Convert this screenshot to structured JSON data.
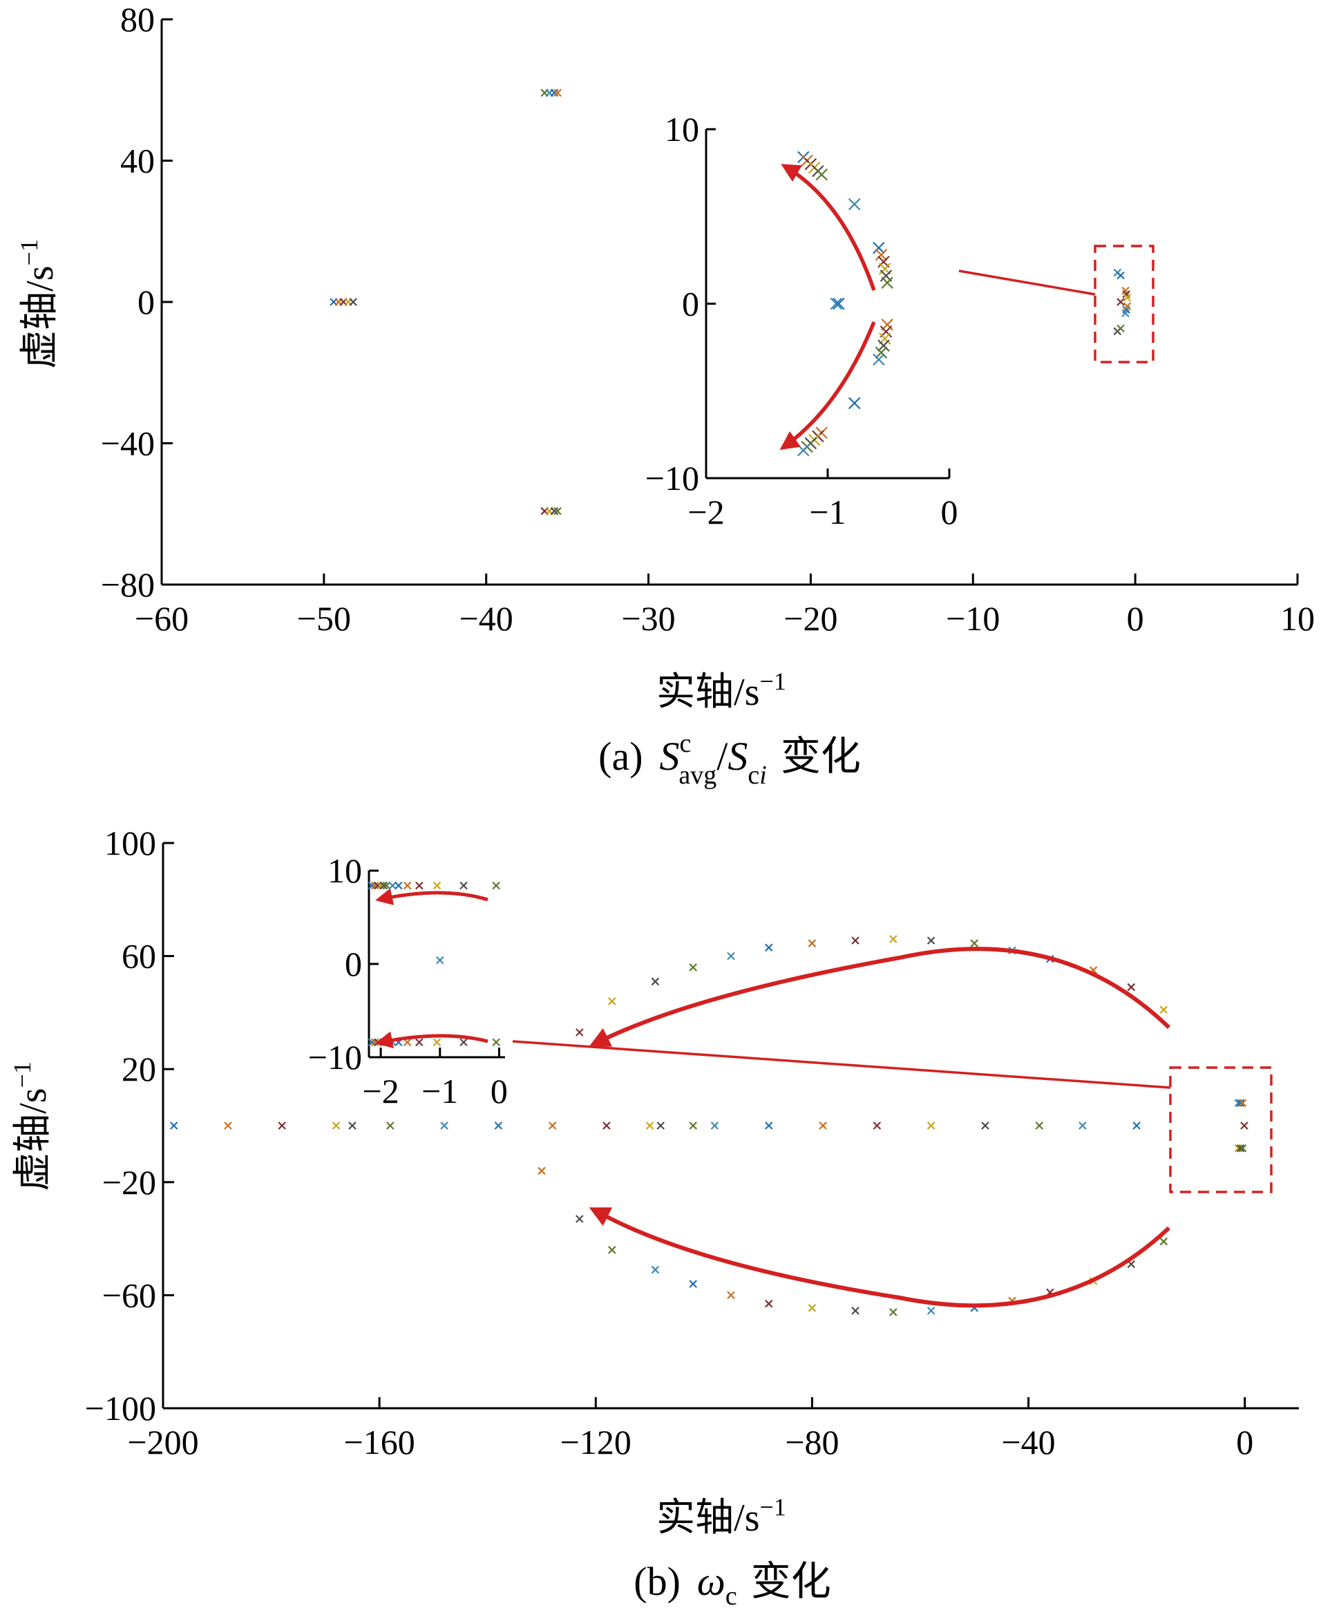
{
  "colors": {
    "axis": "#000000",
    "arrow": "#d42020",
    "zoom_box": "#d42020",
    "markers": [
      "#1f6fb5",
      "#c8701e",
      "#7a2f2f",
      "#c8a51e",
      "#4a4a4a",
      "#5a7a2a",
      "#3a8ab5"
    ]
  },
  "chart_data": [
    {
      "id": "a",
      "type": "scatter",
      "marker": "x",
      "caption": {
        "prefix": "(a)",
        "S": "S",
        "sup_c": "c",
        "sub_avg": "avg",
        "slash": "/",
        "S2": "S",
        "sub_ci": "c",
        "sub_i": "i",
        "suffix": "变化"
      },
      "xlabel": {
        "main": "实轴",
        "unit": "/s",
        "exp": "−1"
      },
      "ylabel": {
        "main": "虚轴",
        "unit": "/s",
        "exp": "−1"
      },
      "xlim": [
        -60,
        10
      ],
      "ylim": [
        -80,
        80
      ],
      "xticks": [
        -60,
        -50,
        -40,
        -30,
        -20,
        -10,
        0,
        10
      ],
      "xtick_labels": [
        "−60",
        "−50",
        "−40",
        "−30",
        "−20",
        "−10",
        "0",
        "10"
      ],
      "yticks": [
        -80,
        -40,
        0,
        40,
        80
      ],
      "ytick_labels": [
        "−80",
        "−40",
        "0",
        "40",
        "80"
      ],
      "points": [
        [
          -49.4,
          0
        ],
        [
          -49.1,
          0
        ],
        [
          -48.8,
          0
        ],
        [
          -48.5,
          0
        ],
        [
          -48.2,
          0
        ],
        [
          -36.4,
          59.2
        ],
        [
          -36.1,
          59.2
        ],
        [
          -35.8,
          59.2
        ],
        [
          -35.6,
          59.2
        ],
        [
          -36.4,
          -59.2
        ],
        [
          -36.1,
          -59.2
        ],
        [
          -35.8,
          -59.2
        ],
        [
          -35.6,
          -59.2
        ],
        [
          -1.1,
          8.3
        ],
        [
          -0.9,
          7.5
        ],
        [
          -0.6,
          3.2
        ],
        [
          -0.55,
          2.2
        ],
        [
          -0.5,
          1.2
        ],
        [
          -1.1,
          -8.3
        ],
        [
          -0.9,
          -7.5
        ],
        [
          -0.6,
          -3.2
        ],
        [
          -0.55,
          -2.2
        ],
        [
          -0.5,
          -1.2
        ],
        [
          -0.9,
          0
        ]
      ],
      "inset": {
        "xlim": [
          -2,
          0
        ],
        "ylim": [
          -10,
          10
        ],
        "xticks": [
          -2,
          -1,
          0
        ],
        "xtick_labels": [
          "−2",
          "−1",
          "0"
        ],
        "yticks": [
          -10,
          0,
          10
        ],
        "ytick_labels": [
          "−10",
          "0",
          "10"
        ],
        "points": [
          [
            -1.2,
            8.4
          ],
          [
            -1.17,
            8.2
          ],
          [
            -1.14,
            8.0
          ],
          [
            -1.11,
            7.8
          ],
          [
            -1.08,
            7.6
          ],
          [
            -1.05,
            7.4
          ],
          [
            -0.78,
            5.7
          ],
          [
            -0.58,
            3.2
          ],
          [
            -0.56,
            2.8
          ],
          [
            -0.54,
            2.4
          ],
          [
            -0.53,
            2.0
          ],
          [
            -0.52,
            1.6
          ],
          [
            -0.51,
            1.2
          ],
          [
            -0.93,
            0.0
          ],
          [
            -0.91,
            0.0
          ],
          [
            -0.51,
            -1.2
          ],
          [
            -0.52,
            -1.6
          ],
          [
            -0.53,
            -2.0
          ],
          [
            -0.54,
            -2.4
          ],
          [
            -0.56,
            -2.8
          ],
          [
            -0.58,
            -3.2
          ],
          [
            -0.78,
            -5.7
          ],
          [
            -1.05,
            -7.4
          ],
          [
            -1.08,
            -7.6
          ],
          [
            -1.11,
            -7.8
          ],
          [
            -1.14,
            -8.0
          ],
          [
            -1.17,
            -8.2
          ],
          [
            -1.2,
            -8.4
          ]
        ]
      }
    },
    {
      "id": "b",
      "type": "scatter",
      "marker": "x",
      "caption": {
        "prefix": "(b)",
        "omega": "ω",
        "sub_c": "c",
        "suffix": "变化"
      },
      "xlabel": {
        "main": "实轴",
        "unit": "/s",
        "exp": "−1"
      },
      "ylabel": {
        "main": "虚轴",
        "unit": "/s",
        "exp": "−1"
      },
      "xlim": [
        -200,
        10
      ],
      "ylim": [
        -100,
        100
      ],
      "xticks": [
        -200,
        -160,
        -120,
        -80,
        -40,
        0
      ],
      "xtick_labels": [
        "−200",
        "−160",
        "−120",
        "−80",
        "−40",
        "0"
      ],
      "yticks": [
        -100,
        -60,
        -20,
        20,
        60,
        100
      ],
      "ytick_labels": [
        "−100",
        "−60",
        "−20",
        "20",
        "60",
        "100"
      ],
      "points": [
        [
          -198,
          0
        ],
        [
          -188,
          0
        ],
        [
          -178,
          0
        ],
        [
          -168,
          0
        ],
        [
          -165,
          0
        ],
        [
          -158,
          0
        ],
        [
          -148,
          0
        ],
        [
          -138,
          0
        ],
        [
          -128,
          0
        ],
        [
          -118,
          0
        ],
        [
          -110,
          0
        ],
        [
          -108,
          0
        ],
        [
          -102,
          0
        ],
        [
          -98,
          0
        ],
        [
          -88,
          0
        ],
        [
          -78,
          0
        ],
        [
          -68,
          0
        ],
        [
          -58,
          0
        ],
        [
          -48,
          0
        ],
        [
          -38,
          0
        ],
        [
          -30,
          0
        ],
        [
          -20,
          0
        ],
        [
          -130,
          -16
        ],
        [
          -123,
          33
        ],
        [
          -117,
          44
        ],
        [
          -109,
          51
        ],
        [
          -102,
          56
        ],
        [
          -95,
          60
        ],
        [
          -88,
          63
        ],
        [
          -80,
          64.5
        ],
        [
          -72,
          65.5
        ],
        [
          -65,
          66
        ],
        [
          -58,
          65.5
        ],
        [
          -50,
          64.5
        ],
        [
          -43,
          62
        ],
        [
          -36,
          59
        ],
        [
          -28,
          55
        ],
        [
          -21,
          49
        ],
        [
          -15,
          41
        ],
        [
          -123,
          -33
        ],
        [
          -117,
          -44
        ],
        [
          -109,
          -51
        ],
        [
          -102,
          -56
        ],
        [
          -95,
          -60
        ],
        [
          -88,
          -63
        ],
        [
          -80,
          -64.5
        ],
        [
          -72,
          -65.5
        ],
        [
          -65,
          -66
        ],
        [
          -58,
          -65.5
        ],
        [
          -50,
          -64.5
        ],
        [
          -43,
          -62
        ],
        [
          -36,
          -59
        ],
        [
          -28,
          -55
        ],
        [
          -21,
          -49
        ],
        [
          -15,
          -41
        ],
        [
          -1.2,
          8
        ],
        [
          -0.8,
          8
        ],
        [
          -0.4,
          8
        ],
        [
          -0.1,
          0
        ],
        [
          -1.2,
          -8
        ],
        [
          -0.8,
          -8
        ],
        [
          -0.4,
          -8
        ]
      ],
      "inset": {
        "xlim": [
          -2.2,
          0.1
        ],
        "ylim": [
          -10,
          10
        ],
        "xticks": [
          -2,
          -1,
          0
        ],
        "xtick_labels": [
          "−2",
          "−1",
          "0"
        ],
        "yticks": [
          -10,
          0,
          10
        ],
        "ytick_labels": [
          "−10",
          "0",
          "10"
        ],
        "points": [
          [
            -2.15,
            8.4
          ],
          [
            -2.1,
            8.4
          ],
          [
            -2.05,
            8.4
          ],
          [
            -2.0,
            8.4
          ],
          [
            -1.95,
            8.4
          ],
          [
            -1.9,
            8.4
          ],
          [
            -1.8,
            8.4
          ],
          [
            -1.7,
            8.4
          ],
          [
            -1.55,
            8.4
          ],
          [
            -1.35,
            8.4
          ],
          [
            -1.05,
            8.4
          ],
          [
            -0.6,
            8.4
          ],
          [
            -0.05,
            8.4
          ],
          [
            -1.0,
            0.4
          ],
          [
            -2.15,
            -8.4
          ],
          [
            -2.1,
            -8.4
          ],
          [
            -2.05,
            -8.4
          ],
          [
            -2.0,
            -8.4
          ],
          [
            -1.95,
            -8.4
          ],
          [
            -1.9,
            -8.4
          ],
          [
            -1.8,
            -8.4
          ],
          [
            -1.7,
            -8.4
          ],
          [
            -1.55,
            -8.4
          ],
          [
            -1.35,
            -8.4
          ],
          [
            -1.05,
            -8.4
          ],
          [
            -0.6,
            -8.4
          ],
          [
            -0.05,
            -8.4
          ]
        ]
      }
    }
  ]
}
